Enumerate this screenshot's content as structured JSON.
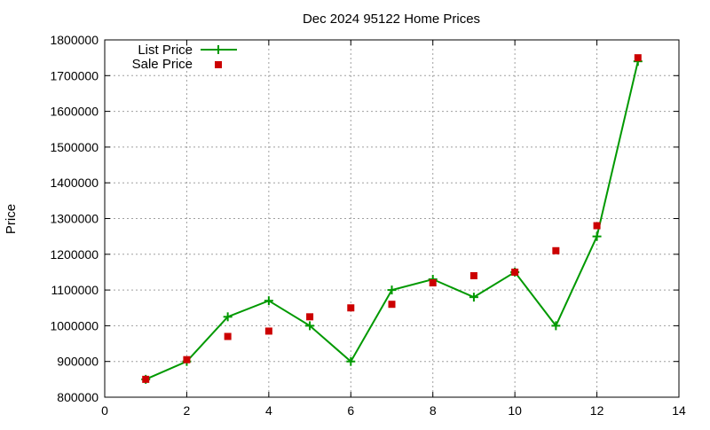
{
  "chart_data": {
    "type": "line",
    "title": "Dec 2024 95122 Home Prices",
    "xlabel": "",
    "ylabel": "Price",
    "xlim": [
      0,
      14
    ],
    "ylim": [
      800000,
      1800000
    ],
    "x_ticks": [
      0,
      2,
      4,
      6,
      8,
      10,
      12,
      14
    ],
    "y_ticks": [
      800000,
      900000,
      1000000,
      1100000,
      1200000,
      1300000,
      1400000,
      1500000,
      1600000,
      1700000,
      1800000
    ],
    "grid": true,
    "legend_position": "top-left",
    "series": [
      {
        "name": "List Price",
        "style": "linespoints",
        "marker": "plus",
        "color": "#009900",
        "x": [
          1,
          2,
          3,
          4,
          5,
          6,
          7,
          8,
          9,
          10,
          11,
          12,
          13
        ],
        "y": [
          850000,
          900000,
          1025000,
          1070000,
          1000000,
          900000,
          1100000,
          1130000,
          1080000,
          1150000,
          1000000,
          1250000,
          1740000
        ]
      },
      {
        "name": "Sale Price",
        "style": "points",
        "marker": "square",
        "color": "#cc0000",
        "x": [
          1,
          2,
          3,
          4,
          5,
          6,
          7,
          8,
          9,
          10,
          11,
          12,
          13
        ],
        "y": [
          850000,
          905000,
          970000,
          985000,
          1025000,
          1050000,
          1060000,
          1120000,
          1140000,
          1150000,
          1210000,
          1280000,
          1750000
        ]
      }
    ]
  }
}
